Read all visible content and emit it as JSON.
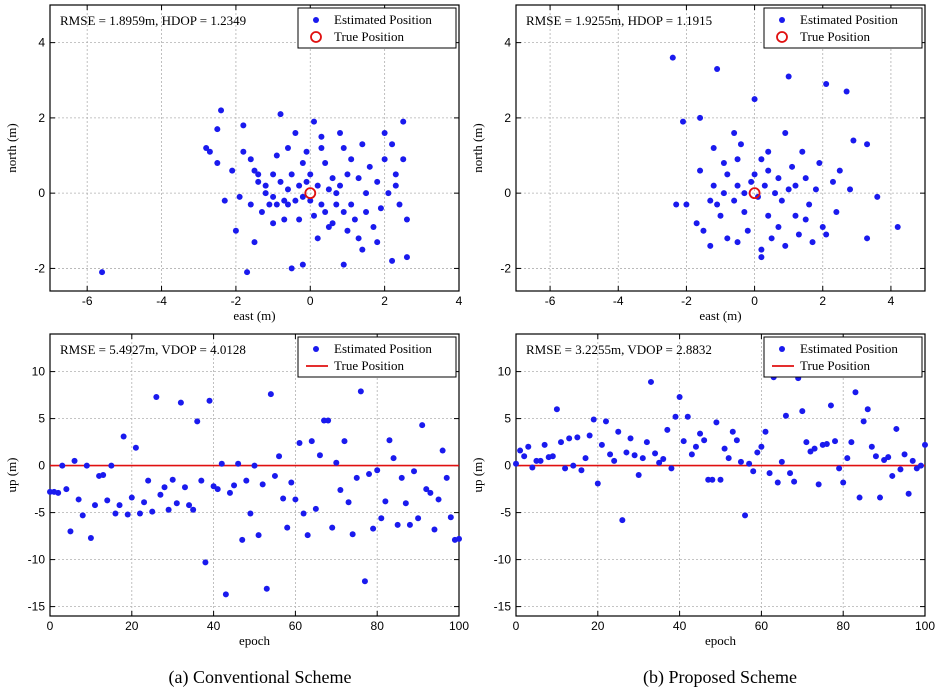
{
  "captions": [
    "(a) Conventional Scheme",
    "(b) Proposed Scheme"
  ],
  "legend": {
    "estimated": "Estimated Position",
    "true": "True Position"
  },
  "chart_data": [
    {
      "id": "a-top",
      "type": "scatter",
      "annotation": "RMSE = 1.8959m, HDOP = 1.2349",
      "xlabel": "east (m)",
      "ylabel": "north (m)",
      "xlim": [
        -7,
        4
      ],
      "ylim": [
        -2.6,
        5
      ],
      "xticks": [
        -6,
        -4,
        -2,
        0,
        2,
        4
      ],
      "yticks": [
        -2,
        0,
        2,
        4
      ],
      "grid": true,
      "legend_position": "top-right",
      "true_position": [
        0,
        0
      ],
      "points": [
        [
          -5.6,
          -2.1
        ],
        [
          -2.8,
          1.2
        ],
        [
          -2.7,
          1.1
        ],
        [
          -2.5,
          1.7
        ],
        [
          -2.4,
          2.2
        ],
        [
          -2.5,
          0.8
        ],
        [
          -2.3,
          -0.2
        ],
        [
          -2.1,
          0.6
        ],
        [
          -1.9,
          -0.1
        ],
        [
          -1.8,
          1.8
        ],
        [
          -1.7,
          -2.1
        ],
        [
          -1.8,
          1.1
        ],
        [
          -1.6,
          0.9
        ],
        [
          -1.6,
          -0.3
        ],
        [
          -1.5,
          0.6
        ],
        [
          -1.4,
          0.3
        ],
        [
          -1.3,
          -0.5
        ],
        [
          -1.2,
          0.0
        ],
        [
          -1.2,
          0.2
        ],
        [
          -1.1,
          -0.3
        ],
        [
          -1.0,
          0.5
        ],
        [
          -1.0,
          -0.1
        ],
        [
          -0.9,
          1.0
        ],
        [
          -0.9,
          -0.3
        ],
        [
          -0.8,
          2.1
        ],
        [
          -0.8,
          0.3
        ],
        [
          -0.7,
          -0.2
        ],
        [
          -0.7,
          -0.7
        ],
        [
          -0.6,
          0.1
        ],
        [
          -0.6,
          -0.3
        ],
        [
          -0.5,
          -2.0
        ],
        [
          -0.5,
          0.5
        ],
        [
          -0.4,
          1.6
        ],
        [
          -0.4,
          -0.2
        ],
        [
          -0.3,
          0.2
        ],
        [
          -0.3,
          -0.7
        ],
        [
          -0.2,
          -0.1
        ],
        [
          -0.2,
          -1.9
        ],
        [
          -0.1,
          1.1
        ],
        [
          -0.1,
          0.3
        ],
        [
          0.0,
          -0.2
        ],
        [
          0.0,
          0.5
        ],
        [
          0.1,
          1.9
        ],
        [
          0.1,
          -0.6
        ],
        [
          0.2,
          0.2
        ],
        [
          0.2,
          -1.2
        ],
        [
          0.3,
          1.2
        ],
        [
          0.3,
          -0.3
        ],
        [
          0.4,
          0.8
        ],
        [
          0.4,
          -0.5
        ],
        [
          0.5,
          -0.9
        ],
        [
          0.5,
          0.1
        ],
        [
          0.6,
          0.4
        ],
        [
          0.6,
          -0.8
        ],
        [
          0.7,
          -0.3
        ],
        [
          0.8,
          1.6
        ],
        [
          0.8,
          0.2
        ],
        [
          0.9,
          -0.5
        ],
        [
          0.9,
          -1.9
        ],
        [
          1.0,
          0.5
        ],
        [
          1.0,
          -1.0
        ],
        [
          1.1,
          0.9
        ],
        [
          1.1,
          -0.3
        ],
        [
          1.2,
          -0.7
        ],
        [
          1.3,
          0.4
        ],
        [
          1.3,
          -1.2
        ],
        [
          1.4,
          1.3
        ],
        [
          1.5,
          0.0
        ],
        [
          1.5,
          -0.5
        ],
        [
          1.6,
          0.7
        ],
        [
          1.7,
          -0.9
        ],
        [
          1.8,
          0.3
        ],
        [
          1.9,
          -0.4
        ],
        [
          2.0,
          1.6
        ],
        [
          2.0,
          0.9
        ],
        [
          2.1,
          0.0
        ],
        [
          2.2,
          1.3
        ],
        [
          2.2,
          -1.8
        ],
        [
          2.3,
          0.5
        ],
        [
          2.4,
          -0.3
        ],
        [
          2.5,
          1.9
        ],
        [
          2.5,
          0.9
        ],
        [
          2.6,
          -0.7
        ],
        [
          2.6,
          -1.7
        ],
        [
          -1.4,
          0.5
        ],
        [
          -0.2,
          0.8
        ],
        [
          0.7,
          0.0
        ],
        [
          1.8,
          -1.3
        ],
        [
          -2.0,
          -1.0
        ],
        [
          -1.0,
          -0.8
        ],
        [
          0.3,
          1.5
        ],
        [
          1.4,
          -1.5
        ],
        [
          -0.6,
          1.2
        ],
        [
          2.3,
          0.2
        ],
        [
          -1.5,
          -1.3
        ],
        [
          0.9,
          1.2
        ]
      ]
    },
    {
      "id": "b-top",
      "type": "scatter",
      "annotation": "RMSE = 1.9255m, HDOP = 1.1915",
      "xlabel": "east (m)",
      "ylabel": "north (m)",
      "xlim": [
        -7,
        5
      ],
      "ylim": [
        -2.6,
        5
      ],
      "xticks": [
        -6,
        -4,
        -2,
        0,
        2,
        4
      ],
      "yticks": [
        -2,
        0,
        2,
        4
      ],
      "grid": true,
      "legend_position": "top-right",
      "true_position": [
        0,
        0
      ],
      "points": [
        [
          -2.4,
          3.6
        ],
        [
          -1.1,
          3.3
        ],
        [
          1.0,
          3.1
        ],
        [
          2.1,
          2.9
        ],
        [
          2.7,
          2.7
        ],
        [
          0.0,
          2.5
        ],
        [
          -1.6,
          2.0
        ],
        [
          -2.1,
          1.9
        ],
        [
          3.3,
          1.3
        ],
        [
          2.9,
          1.4
        ],
        [
          0.9,
          1.6
        ],
        [
          -0.6,
          1.6
        ],
        [
          -1.2,
          1.2
        ],
        [
          -0.4,
          1.3
        ],
        [
          0.4,
          1.1
        ],
        [
          1.4,
          1.1
        ],
        [
          -0.9,
          0.8
        ],
        [
          -0.5,
          0.9
        ],
        [
          0.2,
          0.9
        ],
        [
          1.1,
          0.7
        ],
        [
          1.9,
          0.8
        ],
        [
          2.5,
          0.6
        ],
        [
          -1.6,
          0.6
        ],
        [
          -0.8,
          0.5
        ],
        [
          0.0,
          0.5
        ],
        [
          0.7,
          0.4
        ],
        [
          1.5,
          0.4
        ],
        [
          2.3,
          0.3
        ],
        [
          -1.2,
          0.2
        ],
        [
          -0.5,
          0.2
        ],
        [
          0.3,
          0.2
        ],
        [
          1.0,
          0.1
        ],
        [
          1.8,
          0.1
        ],
        [
          2.8,
          0.1
        ],
        [
          -2.0,
          -0.3
        ],
        [
          -1.3,
          -0.2
        ],
        [
          -0.6,
          -0.2
        ],
        [
          0.1,
          -0.1
        ],
        [
          0.8,
          -0.2
        ],
        [
          1.6,
          -0.3
        ],
        [
          3.6,
          -0.1
        ],
        [
          -1.7,
          -0.8
        ],
        [
          -1.0,
          -0.6
        ],
        [
          -0.3,
          -0.5
        ],
        [
          0.4,
          -0.6
        ],
        [
          1.2,
          -0.6
        ],
        [
          2.0,
          -0.9
        ],
        [
          -1.5,
          -1.0
        ],
        [
          -0.8,
          -1.2
        ],
        [
          -0.2,
          -1.0
        ],
        [
          0.5,
          -1.2
        ],
        [
          1.3,
          -1.1
        ],
        [
          2.1,
          -1.1
        ],
        [
          3.3,
          -1.2
        ],
        [
          4.2,
          -0.9
        ],
        [
          -1.3,
          -1.4
        ],
        [
          -0.5,
          -1.3
        ],
        [
          0.2,
          -1.5
        ],
        [
          0.9,
          -1.4
        ],
        [
          1.7,
          -1.3
        ],
        [
          0.2,
          -1.7
        ],
        [
          -0.3,
          0.0
        ],
        [
          0.6,
          0.0
        ],
        [
          1.2,
          0.2
        ],
        [
          -2.3,
          -0.3
        ],
        [
          -0.1,
          0.3
        ],
        [
          0.4,
          0.6
        ],
        [
          -1.1,
          -0.3
        ],
        [
          1.5,
          -0.7
        ],
        [
          2.4,
          -0.5
        ],
        [
          0.7,
          -0.9
        ],
        [
          -0.9,
          0.0
        ]
      ]
    },
    {
      "id": "a-bottom",
      "type": "scatter",
      "annotation": "RMSE = 5.4927m, VDOP = 4.0128",
      "xlabel": "epoch",
      "ylabel": "up (m)",
      "xlim": [
        0,
        100
      ],
      "ylim": [
        -16,
        14
      ],
      "xticks": [
        0,
        20,
        40,
        60,
        80,
        100
      ],
      "yticks": [
        -15,
        -10,
        -5,
        0,
        5,
        10
      ],
      "grid": true,
      "legend_position": "top-right",
      "true_line": 0,
      "y": [
        -2.8,
        -2.8,
        -2.9,
        0.0,
        -2.5,
        -7.0,
        0.5,
        -3.6,
        -5.3,
        0.0,
        -7.7,
        -4.2,
        -1.1,
        -1.0,
        -3.7,
        0.0,
        -5.1,
        -4.2,
        3.1,
        -5.2,
        -3.4,
        1.9,
        -5.1,
        -3.9,
        -1.6,
        -4.9,
        7.3,
        -3.1,
        -2.3,
        -4.7,
        -1.5,
        -4.0,
        6.7,
        -2.3,
        -4.2,
        -4.7,
        4.7,
        -1.6,
        -10.3,
        6.9,
        -2.2,
        -2.5,
        0.2,
        -13.7,
        -2.9,
        -2.1,
        0.2,
        -7.9,
        -1.6,
        -5.1,
        0.0,
        -7.4,
        -2.0,
        -13.1,
        7.6,
        -1.1,
        1.0,
        -3.5,
        -6.6,
        -1.8,
        -3.6,
        2.4,
        -5.1,
        -7.4,
        2.6,
        -4.6,
        1.1,
        4.8,
        4.8,
        -6.6,
        0.3,
        -2.6,
        2.6,
        -3.9,
        -7.3,
        -1.3,
        7.9,
        -12.3,
        -0.9,
        -6.7,
        -0.5,
        -5.6,
        -3.8,
        2.7,
        0.8,
        -6.3,
        -1.3,
        -4.0,
        -6.3,
        -0.6,
        -5.6,
        4.3,
        -2.5,
        -2.9,
        -6.8,
        -3.6,
        1.6,
        -1.3,
        -5.5,
        -7.9,
        -7.8
      ]
    },
    {
      "id": "b-bottom",
      "type": "scatter",
      "annotation": "RMSE = 3.2255m, VDOP = 2.8832",
      "xlabel": "epoch",
      "ylabel": "up (m)",
      "xlim": [
        0,
        100
      ],
      "ylim": [
        -16,
        14
      ],
      "xticks": [
        0,
        20,
        40,
        60,
        80,
        100
      ],
      "yticks": [
        -15,
        -10,
        -5,
        0,
        5,
        10
      ],
      "grid": true,
      "legend_position": "top-right",
      "true_line": 0,
      "y": [
        0.2,
        1.6,
        1.0,
        2.0,
        -0.2,
        0.5,
        0.5,
        2.2,
        0.9,
        1.0,
        6.0,
        2.5,
        -0.3,
        2.9,
        0.0,
        3.0,
        -0.5,
        0.8,
        3.2,
        4.9,
        -1.9,
        2.2,
        4.7,
        1.2,
        0.5,
        3.6,
        -5.8,
        1.4,
        2.9,
        1.1,
        -1.0,
        0.8,
        2.5,
        8.9,
        1.3,
        0.3,
        0.7,
        3.8,
        -0.3,
        5.2,
        7.3,
        2.6,
        5.2,
        1.2,
        2.0,
        3.4,
        2.7,
        -1.5,
        -1.5,
        4.6,
        -1.5,
        1.8,
        0.8,
        3.6,
        2.7,
        0.4,
        -5.3,
        0.2,
        -0.6,
        1.4,
        2.0,
        3.6,
        -0.8,
        9.4,
        -1.8,
        0.4,
        5.3,
        -0.8,
        -1.7,
        9.3,
        5.8,
        2.5,
        1.5,
        1.8,
        -2.0,
        2.2,
        2.3,
        6.4,
        2.6,
        -0.3,
        -1.8,
        0.8,
        2.5,
        7.8,
        -3.4,
        4.7,
        6.0,
        2.0,
        1.0,
        -3.4,
        0.6,
        0.9,
        -1.1,
        3.9,
        -0.4,
        1.2,
        -3.0,
        0.5,
        -0.3,
        0.0,
        2.2
      ]
    }
  ]
}
